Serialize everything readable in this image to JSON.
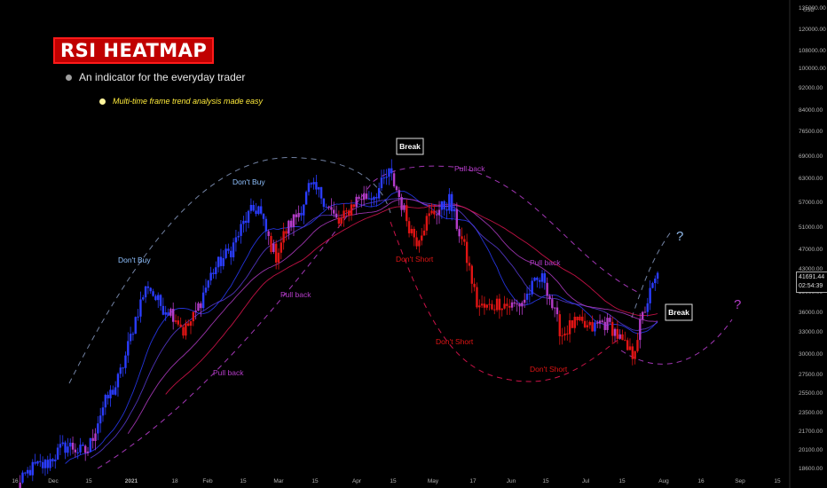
{
  "header": {
    "title": "RSI HEATMAP",
    "subtitle": "An indicator for the everyday trader",
    "tagline": "Multi-time frame trend analysis made easy"
  },
  "price_tag": {
    "price": "41691.44",
    "countdown": "02:54:39"
  },
  "axis_currency": "USD",
  "colors": {
    "background": "#000000",
    "title_bg": "#c00000",
    "bull": "#2a3cff",
    "transition": "#b43cc8",
    "bear": "#e01414",
    "dashed_arc": "#7d8fb4",
    "pull_back": "#b43cc8",
    "dont_short": "#e01414",
    "dont_buy": "#8fc1ff"
  },
  "chart_data": {
    "type": "candlestick",
    "title": "RSI HEATMAP",
    "price_axis": {
      "scale": "log",
      "ylim": [
        18000,
        135000
      ],
      "tick_labels": [
        "135000.00",
        "120000.00",
        "108000.00",
        "100000.00",
        "92000.00",
        "84000.00",
        "76500.00",
        "69000.00",
        "63000.00",
        "57000.00",
        "51000.00",
        "47000.00",
        "43000.00",
        "39000.00",
        "36000.00",
        "33000.00",
        "30000.00",
        "27500.00",
        "25500.00",
        "23500.00",
        "21700.00",
        "20100.00",
        "18600.00"
      ]
    },
    "time_axis": {
      "tick_labels": [
        "16",
        "Dec",
        "15",
        "2021",
        "18",
        "Feb",
        "15",
        "Mar",
        "15",
        "Apr",
        "15",
        "May",
        "17",
        "Jun",
        "15",
        "Jul",
        "15",
        "Aug",
        "16",
        "Sep",
        "15"
      ]
    },
    "price_path": [
      {
        "t": "2020-11-16",
        "close": 16500
      },
      {
        "t": "2020-12-01",
        "close": 19200
      },
      {
        "t": "2020-12-15",
        "close": 19800
      },
      {
        "t": "2020-12-26",
        "close": 26000
      },
      {
        "t": "2021-01-08",
        "close": 40000
      },
      {
        "t": "2021-01-22",
        "close": 32500
      },
      {
        "t": "2021-02-08",
        "close": 46000
      },
      {
        "t": "2021-02-21",
        "close": 56000
      },
      {
        "t": "2021-02-28",
        "close": 45000
      },
      {
        "t": "2021-03-13",
        "close": 61000
      },
      {
        "t": "2021-03-25",
        "close": 53000
      },
      {
        "t": "2021-04-14",
        "close": 63500
      },
      {
        "t": "2021-04-25",
        "close": 49000
      },
      {
        "t": "2021-05-08",
        "close": 58500
      },
      {
        "t": "2021-05-19",
        "close": 37000
      },
      {
        "t": "2021-05-31",
        "close": 36000
      },
      {
        "t": "2021-06-15",
        "close": 40500
      },
      {
        "t": "2021-06-22",
        "close": 32500
      },
      {
        "t": "2021-07-07",
        "close": 34000
      },
      {
        "t": "2021-07-20",
        "close": 30000
      },
      {
        "t": "2021-07-30",
        "close": 41600
      }
    ],
    "annotations": [
      {
        "text": "Don't Buy",
        "kind": "dont_buy"
      },
      {
        "text": "Don't Buy",
        "kind": "dont_buy"
      },
      {
        "text": "Break",
        "kind": "break"
      },
      {
        "text": "Pull back",
        "kind": "pull_back"
      },
      {
        "text": "Pull back",
        "kind": "pull_back"
      },
      {
        "text": "Pull back",
        "kind": "pull_back"
      },
      {
        "text": "Pull back",
        "kind": "pull_back"
      },
      {
        "text": "Don't Short",
        "kind": "dont_short"
      },
      {
        "text": "Don't Short",
        "kind": "dont_short"
      },
      {
        "text": "Don't Short",
        "kind": "dont_short"
      },
      {
        "text": "Break",
        "kind": "break"
      },
      {
        "text": "?",
        "kind": "question_blue"
      },
      {
        "text": "?",
        "kind": "question_pink"
      }
    ]
  }
}
